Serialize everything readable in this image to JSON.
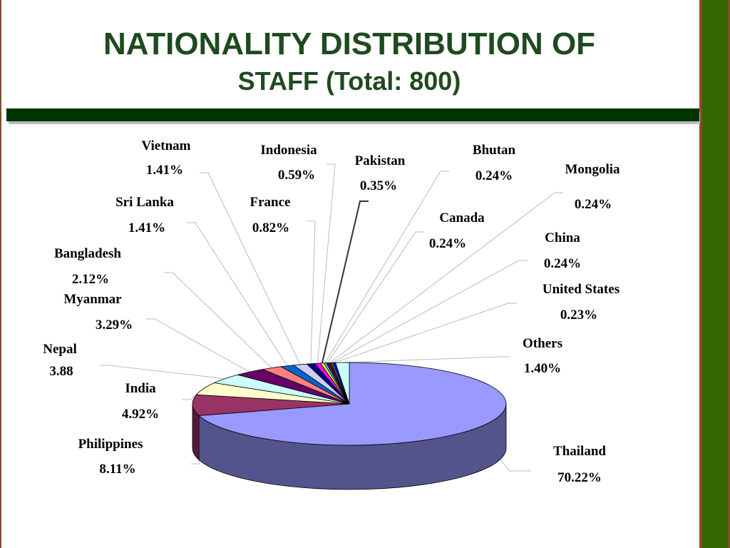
{
  "chart_data": {
    "type": "pie3d",
    "title": [
      "NATIONALITY DISTRIBUTION OF",
      "STAFF (Total: 800)"
    ],
    "categories": [
      "Thailand",
      "Philippines",
      "India",
      "Nepal",
      "Myanmar",
      "Bangladesh",
      "Sri Lanka",
      "Vietnam",
      "France",
      "Indonesia",
      "Pakistan",
      "Bhutan",
      "Canada",
      "Mongolia",
      "China",
      "United States",
      "Others"
    ],
    "values": [
      70.22,
      8.11,
      4.92,
      3.88,
      3.29,
      2.12,
      1.41,
      1.41,
      0.82,
      0.59,
      0.35,
      0.24,
      0.24,
      0.24,
      0.24,
      0.23,
      1.4
    ],
    "value_labels": [
      "70.22%",
      "8.11%",
      "4.92%",
      "3.88",
      "3.29%",
      "2.12%",
      "1.41%",
      "1.41%",
      "0.82%",
      "0.59%",
      "0.35%",
      "0.24%",
      "0.24%",
      "0.24%",
      "0.24%",
      "0.23%",
      "1.40%"
    ],
    "colors": [
      "#9999ff",
      "#993366",
      "#ffffcc",
      "#ccffff",
      "#660066",
      "#ff8080",
      "#0066cc",
      "#ccccff",
      "#000080",
      "#ff00ff",
      "#ffff00",
      "#00ffff",
      "#800080",
      "#800000",
      "#008080",
      "#0000ff",
      "#ccffff"
    ]
  }
}
